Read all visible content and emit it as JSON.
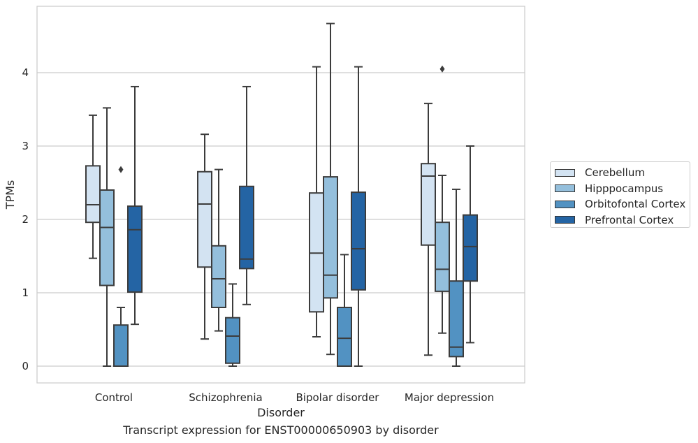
{
  "chart_data": {
    "type": "box",
    "title": "",
    "caption": "Transcript expression for ENST00000650903 by disorder",
    "xlabel": "Disorder",
    "ylabel": "TPMs",
    "ylim": [
      -0.22,
      4.9
    ],
    "yticks": [
      0,
      1,
      2,
      3,
      4
    ],
    "grid": "horizontal",
    "legend_position": "right",
    "categories": [
      "Control",
      "Schizophrenia",
      "Bipolar disorder",
      "Major depression"
    ],
    "series": [
      {
        "name": "Cerebellum",
        "color": "#d3e3f2",
        "boxes": [
          {
            "whislo": 1.47,
            "q1": 1.96,
            "med": 2.2,
            "q3": 2.73,
            "whishi": 3.42,
            "fliers": []
          },
          {
            "whislo": 0.37,
            "q1": 1.35,
            "med": 2.21,
            "q3": 2.65,
            "whishi": 3.16,
            "fliers": []
          },
          {
            "whislo": 0.4,
            "q1": 0.74,
            "med": 1.54,
            "q3": 2.36,
            "whishi": 4.08,
            "fliers": []
          },
          {
            "whislo": 0.15,
            "q1": 1.65,
            "med": 2.59,
            "q3": 2.76,
            "whishi": 3.58,
            "fliers": []
          }
        ]
      },
      {
        "name": "Hipppocampus",
        "color": "#94bfdc",
        "boxes": [
          {
            "whislo": 0.0,
            "q1": 1.1,
            "med": 1.89,
            "q3": 2.4,
            "whishi": 3.52,
            "fliers": []
          },
          {
            "whislo": 0.48,
            "q1": 0.8,
            "med": 1.19,
            "q3": 1.64,
            "whishi": 2.68,
            "fliers": []
          },
          {
            "whislo": 0.16,
            "q1": 0.93,
            "med": 1.24,
            "q3": 2.58,
            "whishi": 4.67,
            "fliers": []
          },
          {
            "whislo": 0.45,
            "q1": 1.02,
            "med": 1.32,
            "q3": 1.96,
            "whishi": 2.6,
            "fliers": [
              4.05
            ]
          }
        ]
      },
      {
        "name": "Orbitofontal Cortex",
        "color": "#5292c2",
        "boxes": [
          {
            "whislo": 0.0,
            "q1": 0.0,
            "med": 0.0,
            "q3": 0.56,
            "whishi": 0.8,
            "fliers": [
              2.68
            ]
          },
          {
            "whislo": 0.0,
            "q1": 0.04,
            "med": 0.41,
            "q3": 0.66,
            "whishi": 1.12,
            "fliers": []
          },
          {
            "whislo": 0.0,
            "q1": 0.0,
            "med": 0.38,
            "q3": 0.8,
            "whishi": 1.52,
            "fliers": []
          },
          {
            "whislo": 0.0,
            "q1": 0.13,
            "med": 0.26,
            "q3": 1.16,
            "whishi": 2.41,
            "fliers": []
          }
        ]
      },
      {
        "name": "Prefrontal Cortex",
        "color": "#2464a4",
        "boxes": [
          {
            "whislo": 0.57,
            "q1": 1.01,
            "med": 1.86,
            "q3": 2.18,
            "whishi": 3.81,
            "fliers": []
          },
          {
            "whislo": 0.84,
            "q1": 1.33,
            "med": 1.46,
            "q3": 2.45,
            "whishi": 3.81,
            "fliers": []
          },
          {
            "whislo": 0.0,
            "q1": 1.04,
            "med": 1.6,
            "q3": 2.37,
            "whishi": 4.08,
            "fliers": []
          },
          {
            "whislo": 0.32,
            "q1": 1.16,
            "med": 1.63,
            "q3": 2.06,
            "whishi": 3.0,
            "fliers": []
          }
        ]
      }
    ]
  }
}
